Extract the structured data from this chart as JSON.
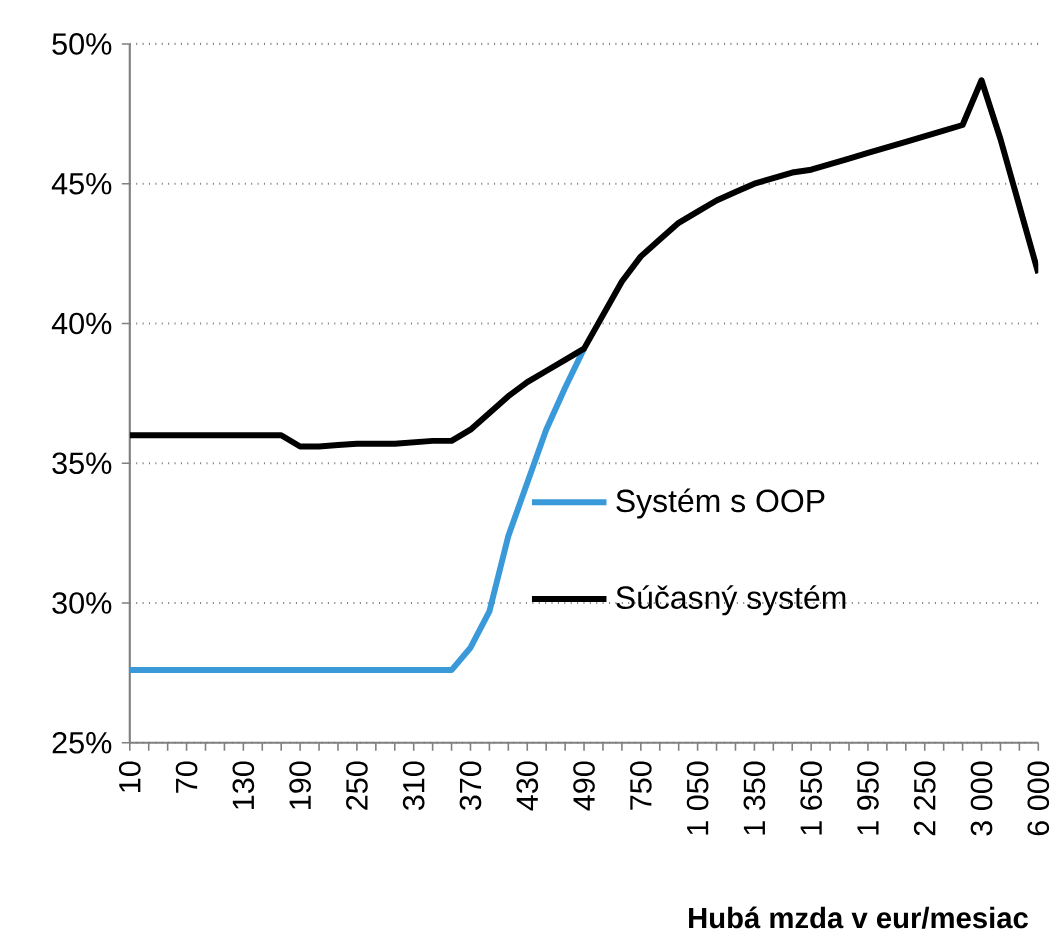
{
  "chart_data": {
    "type": "line",
    "xlabel": "Hubá mzda v eur/mesiac",
    "categories": [
      "10",
      null,
      null,
      "70",
      null,
      null,
      "130",
      null,
      null,
      "190",
      null,
      null,
      "250",
      null,
      null,
      "310",
      null,
      null,
      "370",
      null,
      null,
      "430",
      null,
      null,
      "490",
      null,
      null,
      "750",
      null,
      null,
      "1 050",
      null,
      null,
      "1 350",
      null,
      null,
      "1 650",
      null,
      null,
      "1 950",
      null,
      null,
      "2 250",
      null,
      null,
      "3 000",
      null,
      null,
      "6 000"
    ],
    "series": [
      {
        "name": "Systém s OOP",
        "color": "#3a9ad9",
        "values": [
          27.6,
          27.6,
          27.6,
          27.6,
          27.6,
          27.6,
          27.6,
          27.6,
          27.6,
          27.6,
          27.6,
          27.6,
          27.6,
          27.6,
          27.6,
          27.6,
          27.6,
          27.6,
          28.4,
          29.7,
          32.4,
          34.3,
          36.2,
          37.7,
          39.1,
          null,
          null,
          null,
          null,
          null,
          null,
          null,
          null,
          null,
          null,
          null,
          null,
          null,
          null,
          null,
          null,
          null,
          null,
          null,
          null,
          null,
          null,
          null,
          null
        ]
      },
      {
        "name": "Súčasný systém",
        "color": "#000000",
        "values": [
          36.0,
          36.0,
          36.0,
          36.0,
          36.0,
          36.0,
          36.0,
          36.0,
          36.0,
          35.6,
          35.6,
          35.65,
          35.7,
          35.7,
          35.7,
          35.75,
          35.8,
          35.8,
          36.2,
          36.8,
          37.4,
          37.9,
          38.3,
          38.7,
          39.1,
          40.3,
          41.5,
          42.4,
          43.0,
          43.6,
          44.0,
          44.4,
          44.7,
          45.0,
          45.2,
          45.4,
          45.5,
          45.7,
          45.9,
          46.1,
          46.3,
          46.5,
          46.7,
          46.9,
          47.1,
          48.7,
          46.6,
          44.2,
          41.8
        ]
      }
    ],
    "ylim": [
      25,
      50
    ],
    "yticks": [
      {
        "value": 25,
        "label": "25%"
      },
      {
        "value": 30,
        "label": "30%"
      },
      {
        "value": 35,
        "label": "35%"
      },
      {
        "value": 40,
        "label": "40%"
      },
      {
        "value": 45,
        "label": "45%"
      },
      {
        "value": 50,
        "label": "50%"
      }
    ],
    "grid": "y",
    "legend": "bottom right",
    "line_style": "solid",
    "marker": "none"
  }
}
